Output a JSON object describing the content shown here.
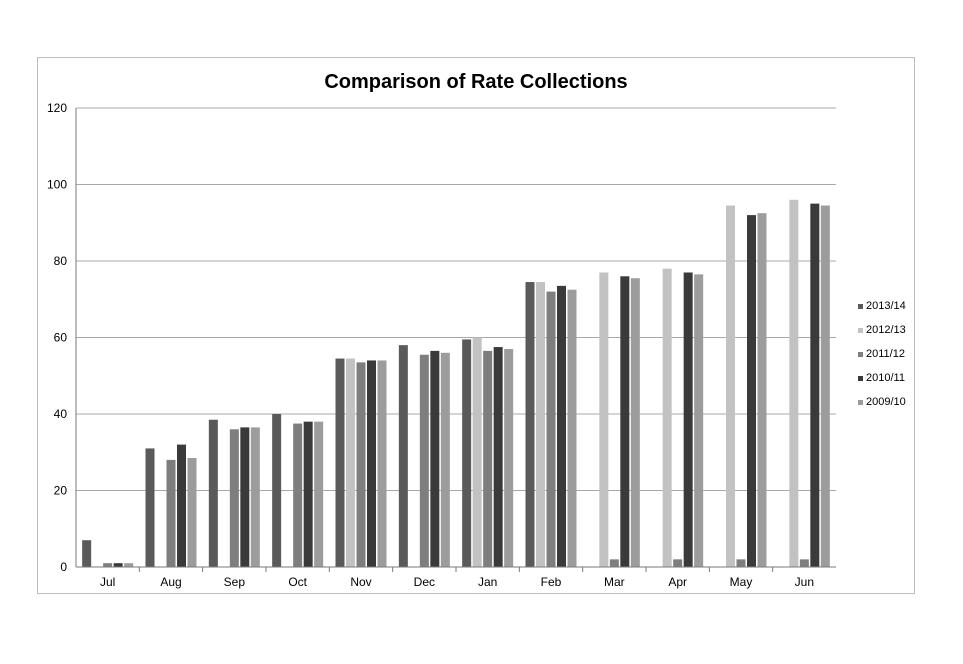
{
  "chart_data": {
    "type": "bar",
    "title": "Comparison  of Rate Collections",
    "xlabel": "",
    "ylabel": "",
    "ylim": [
      0,
      120
    ],
    "yticks": [
      0,
      20,
      40,
      60,
      80,
      100,
      120
    ],
    "grid": true,
    "legend_position": "right",
    "categories": [
      "Jul",
      "Aug",
      "Sep",
      "Oct",
      "Nov",
      "Dec",
      "Jan",
      "Feb",
      "Mar",
      "Apr",
      "May",
      "Jun"
    ],
    "series": [
      {
        "name": "2013/14",
        "color": "#5a5a5a",
        "values": [
          7,
          31,
          38.5,
          40,
          54.5,
          58,
          59.5,
          74.5,
          null,
          null,
          null,
          null
        ]
      },
      {
        "name": "2012/13",
        "color": "#c2c2c2",
        "values": [
          null,
          null,
          null,
          null,
          54.5,
          null,
          60,
          74.5,
          77,
          78,
          94.5,
          96
        ]
      },
      {
        "name": "2011/12",
        "color": "#7e7e7e",
        "values": [
          1,
          28,
          36,
          37.5,
          53.5,
          55.5,
          56.5,
          72,
          2,
          2,
          2,
          2
        ]
      },
      {
        "name": "2010/11",
        "color": "#3a3a3a",
        "values": [
          1,
          32,
          36.5,
          38,
          54,
          56.5,
          57.5,
          73.5,
          76,
          77,
          92,
          95
        ]
      },
      {
        "name": "2009/10",
        "color": "#9c9c9c",
        "values": [
          1,
          28.5,
          36.5,
          38,
          54,
          56,
          57,
          72.5,
          75.5,
          76.5,
          92.5,
          94.5
        ]
      }
    ]
  }
}
